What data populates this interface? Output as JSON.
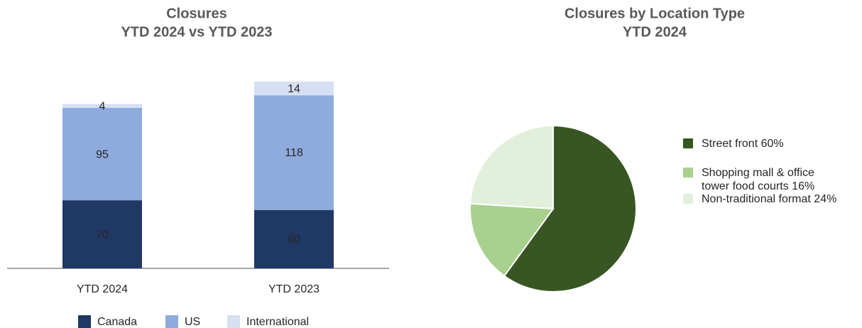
{
  "chart_data": [
    {
      "type": "stacked_bar",
      "title": "Closures",
      "subtitle": "YTD 2024 vs YTD 2023",
      "categories": [
        "YTD 2024",
        "YTD 2023"
      ],
      "series": [
        {
          "name": "Canada",
          "color": "#1f3864",
          "values": [
            70,
            60
          ]
        },
        {
          "name": "US",
          "color": "#8faadc",
          "values": [
            95,
            118
          ]
        },
        {
          "name": "International",
          "color": "#d6e0f2",
          "values": [
            4,
            14
          ]
        }
      ]
    },
    {
      "type": "pie",
      "title": "Closures by Location Type",
      "subtitle": "YTD 2024",
      "labels": [
        "Street front 60%",
        "Shopping mall & office tower food courts 16%",
        "Non-traditional format 24%"
      ],
      "values": [
        60,
        16,
        24
      ],
      "colors": [
        "#375623",
        "#a9d18e",
        "#e2efda"
      ]
    }
  ]
}
